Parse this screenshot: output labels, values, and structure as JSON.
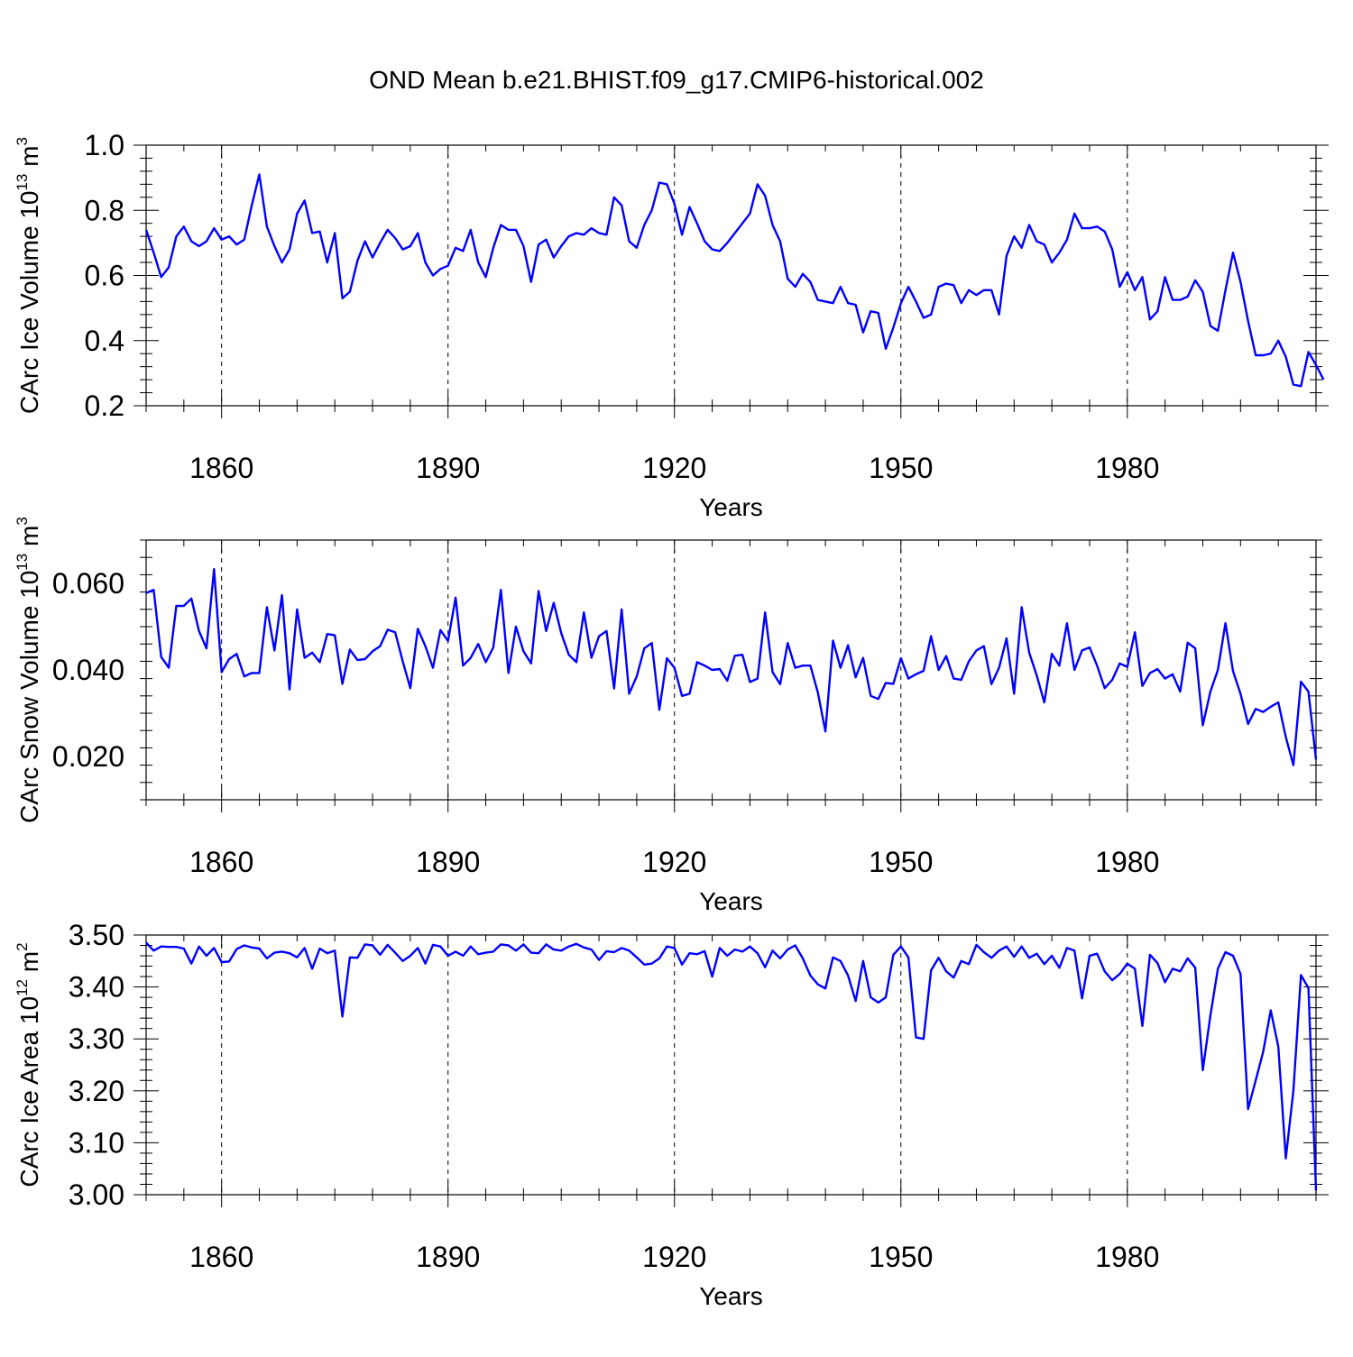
{
  "figure_title": "OND Mean b.e21.BHIST.f09_g17.CMIP6-historical.002",
  "colors": {
    "line": "#0000ff",
    "axis": "#000000",
    "grid": "#000000",
    "background": "#ffffff"
  },
  "chart_data": [
    {
      "type": "line",
      "ylabel_text": "CArc Ice Volume 10",
      "ylabel_exp": "13",
      "ylabel_unit": " m",
      "ylabel_unit_exp": "3",
      "xlabel": "Years",
      "xlim": [
        1850,
        2005
      ],
      "ylim": [
        0.2,
        1.0
      ],
      "xticks": [
        1860,
        1890,
        1920,
        1950,
        1980
      ],
      "yticks": [
        "0.2",
        "0.4",
        "0.6",
        "0.8",
        "1.0"
      ],
      "x_start": 1850,
      "values": [
        0.74,
        0.67,
        0.595,
        0.625,
        0.72,
        0.75,
        0.705,
        0.69,
        0.705,
        0.745,
        0.71,
        0.72,
        0.695,
        0.71,
        0.815,
        0.91,
        0.75,
        0.69,
        0.64,
        0.68,
        0.79,
        0.83,
        0.73,
        0.735,
        0.64,
        0.73,
        0.53,
        0.55,
        0.645,
        0.705,
        0.655,
        0.7,
        0.74,
        0.715,
        0.68,
        0.69,
        0.73,
        0.64,
        0.6,
        0.62,
        0.63,
        0.685,
        0.675,
        0.74,
        0.64,
        0.595,
        0.685,
        0.755,
        0.74,
        0.74,
        0.69,
        0.58,
        0.695,
        0.71,
        0.655,
        0.69,
        0.72,
        0.73,
        0.725,
        0.745,
        0.73,
        0.725,
        0.84,
        0.815,
        0.705,
        0.685,
        0.755,
        0.8,
        0.885,
        0.88,
        0.82,
        0.725,
        0.81,
        0.76,
        0.705,
        0.68,
        0.675,
        0.7,
        0.73,
        0.76,
        0.79,
        0.88,
        0.845,
        0.755,
        0.705,
        0.59,
        0.565,
        0.605,
        0.58,
        0.525,
        0.52,
        0.515,
        0.565,
        0.515,
        0.51,
        0.425,
        0.49,
        0.485,
        0.375,
        0.44,
        0.515,
        0.565,
        0.52,
        0.47,
        0.48,
        0.565,
        0.575,
        0.57,
        0.515,
        0.555,
        0.54,
        0.555,
        0.555,
        0.48,
        0.66,
        0.72,
        0.685,
        0.755,
        0.705,
        0.695,
        0.64,
        0.67,
        0.71,
        0.79,
        0.745,
        0.745,
        0.75,
        0.735,
        0.68,
        0.565,
        0.61,
        0.555,
        0.595,
        0.465,
        0.49,
        0.595,
        0.525,
        0.525,
        0.535,
        0.585,
        0.55,
        0.445,
        0.43,
        0.555,
        0.67,
        0.58,
        0.46,
        0.355,
        0.355,
        0.36,
        0.4,
        0.35,
        0.265,
        0.26,
        0.365,
        0.325,
        0.28
      ]
    },
    {
      "type": "line",
      "ylabel_text": "CArc Snow Volume 10",
      "ylabel_exp": "13",
      "ylabel_unit": " m",
      "ylabel_unit_exp": "3",
      "xlabel": "Years",
      "xlim": [
        1850,
        2005
      ],
      "ylim": [
        0.01,
        0.07
      ],
      "xticks": [
        1860,
        1890,
        1920,
        1950,
        1980
      ],
      "yticks": [
        "0.020",
        "0.040",
        "0.060"
      ],
      "x_start": 1850,
      "values": [
        0.0578,
        0.0585,
        0.043,
        0.0405,
        0.0548,
        0.0548,
        0.0565,
        0.049,
        0.045,
        0.0633,
        0.0395,
        0.0425,
        0.0437,
        0.0385,
        0.0393,
        0.0393,
        0.0545,
        0.0445,
        0.0573,
        0.0355,
        0.054,
        0.0428,
        0.044,
        0.0418,
        0.0483,
        0.048,
        0.0368,
        0.0447,
        0.0423,
        0.0425,
        0.0443,
        0.0455,
        0.0493,
        0.0487,
        0.042,
        0.0358,
        0.0495,
        0.0455,
        0.0405,
        0.0492,
        0.0467,
        0.0567,
        0.041,
        0.0428,
        0.046,
        0.0418,
        0.0452,
        0.0585,
        0.0393,
        0.05,
        0.0443,
        0.0415,
        0.0582,
        0.049,
        0.0555,
        0.0485,
        0.0435,
        0.0418,
        0.0533,
        0.0428,
        0.0478,
        0.049,
        0.0357,
        0.054,
        0.0345,
        0.0385,
        0.045,
        0.0462,
        0.0308,
        0.0427,
        0.0405,
        0.034,
        0.0345,
        0.0418,
        0.041,
        0.04,
        0.0402,
        0.0375,
        0.0433,
        0.0435,
        0.0372,
        0.038,
        0.0533,
        0.0395,
        0.0367,
        0.0462,
        0.0405,
        0.041,
        0.041,
        0.0348,
        0.0258,
        0.0468,
        0.0405,
        0.0457,
        0.0383,
        0.0428,
        0.034,
        0.0333,
        0.037,
        0.0368,
        0.0427,
        0.038,
        0.039,
        0.0398,
        0.0478,
        0.04,
        0.0432,
        0.038,
        0.0377,
        0.042,
        0.0445,
        0.0455,
        0.0367,
        0.0405,
        0.0473,
        0.0345,
        0.0545,
        0.044,
        0.0387,
        0.0325,
        0.0437,
        0.041,
        0.0508,
        0.04,
        0.0445,
        0.0452,
        0.041,
        0.0358,
        0.0377,
        0.0415,
        0.0407,
        0.0487,
        0.0363,
        0.0393,
        0.0402,
        0.038,
        0.039,
        0.035,
        0.0463,
        0.045,
        0.0272,
        0.035,
        0.04,
        0.0508,
        0.0397,
        0.0345,
        0.0275,
        0.031,
        0.0303,
        0.0315,
        0.0325,
        0.0245,
        0.018,
        0.0373,
        0.035,
        0.0193
      ]
    },
    {
      "type": "line",
      "ylabel_text": "CArc Ice Area 10",
      "ylabel_exp": "12",
      "ylabel_unit": " m",
      "ylabel_unit_exp": "2",
      "xlabel": "Years",
      "xlim": [
        1850,
        2005
      ],
      "ylim": [
        3.0,
        3.5
      ],
      "xticks": [
        1860,
        1890,
        1920,
        1950,
        1980
      ],
      "yticks": [
        "3.00",
        "3.10",
        "3.20",
        "3.30",
        "3.40",
        "3.50"
      ],
      "x_start": 1850,
      "values": [
        3.485,
        3.47,
        3.478,
        3.477,
        3.477,
        3.474,
        3.445,
        3.478,
        3.46,
        3.475,
        3.448,
        3.449,
        3.473,
        3.48,
        3.476,
        3.474,
        3.455,
        3.466,
        3.468,
        3.465,
        3.457,
        3.475,
        3.435,
        3.474,
        3.465,
        3.47,
        3.343,
        3.457,
        3.456,
        3.482,
        3.48,
        3.462,
        3.481,
        3.466,
        3.45,
        3.46,
        3.475,
        3.445,
        3.481,
        3.478,
        3.46,
        3.468,
        3.46,
        3.478,
        3.463,
        3.466,
        3.468,
        3.482,
        3.48,
        3.47,
        3.482,
        3.466,
        3.465,
        3.482,
        3.472,
        3.47,
        3.478,
        3.483,
        3.476,
        3.472,
        3.452,
        3.469,
        3.467,
        3.475,
        3.47,
        3.457,
        3.443,
        3.445,
        3.455,
        3.478,
        3.475,
        3.443,
        3.465,
        3.463,
        3.469,
        3.42,
        3.475,
        3.46,
        3.472,
        3.468,
        3.478,
        3.465,
        3.438,
        3.47,
        3.455,
        3.472,
        3.48,
        3.455,
        3.422,
        3.405,
        3.397,
        3.457,
        3.45,
        3.422,
        3.373,
        3.45,
        3.38,
        3.37,
        3.38,
        3.462,
        3.478,
        3.457,
        3.303,
        3.3,
        3.432,
        3.456,
        3.43,
        3.418,
        3.45,
        3.444,
        3.481,
        3.467,
        3.456,
        3.47,
        3.478,
        3.458,
        3.478,
        3.456,
        3.464,
        3.444,
        3.46,
        3.437,
        3.475,
        3.47,
        3.378,
        3.46,
        3.464,
        3.43,
        3.413,
        3.425,
        3.445,
        3.435,
        3.325,
        3.462,
        3.446,
        3.409,
        3.435,
        3.43,
        3.455,
        3.437,
        3.24,
        3.345,
        3.435,
        3.467,
        3.46,
        3.425,
        3.165,
        3.22,
        3.275,
        3.355,
        3.285,
        3.07,
        3.2,
        3.423,
        3.398,
        3.008
      ]
    }
  ]
}
